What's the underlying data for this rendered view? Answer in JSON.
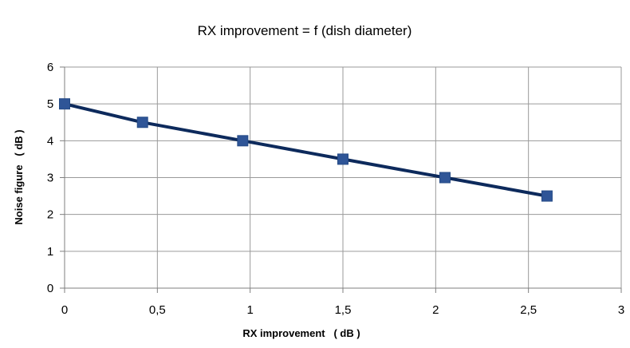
{
  "chart_data": {
    "type": "line",
    "title": "RX improvement = f (dish diameter)",
    "xlabel": "RX improvement   ( dB )",
    "ylabel": "Noise figure   ( dB )",
    "xlim": [
      0,
      3
    ],
    "ylim": [
      0,
      6
    ],
    "x_ticks": [
      0,
      0.5,
      1,
      1.5,
      2,
      2.5,
      3
    ],
    "x_tick_labels": [
      "0",
      "0,5",
      "1",
      "1,5",
      "2",
      "2,5",
      "3"
    ],
    "y_ticks": [
      0,
      1,
      2,
      3,
      4,
      5,
      6
    ],
    "y_tick_labels": [
      "0",
      "1",
      "2",
      "3",
      "4",
      "5",
      "6"
    ],
    "grid": true,
    "legend": "none",
    "series": [
      {
        "x": [
          0,
          0.42,
          0.96,
          1.5,
          2.05,
          2.6
        ],
        "y": [
          5,
          4.5,
          4,
          3.5,
          3,
          2.5
        ],
        "line_color": "#0d2a5c",
        "marker_color": "#2f5597",
        "marker": "square"
      }
    ]
  }
}
